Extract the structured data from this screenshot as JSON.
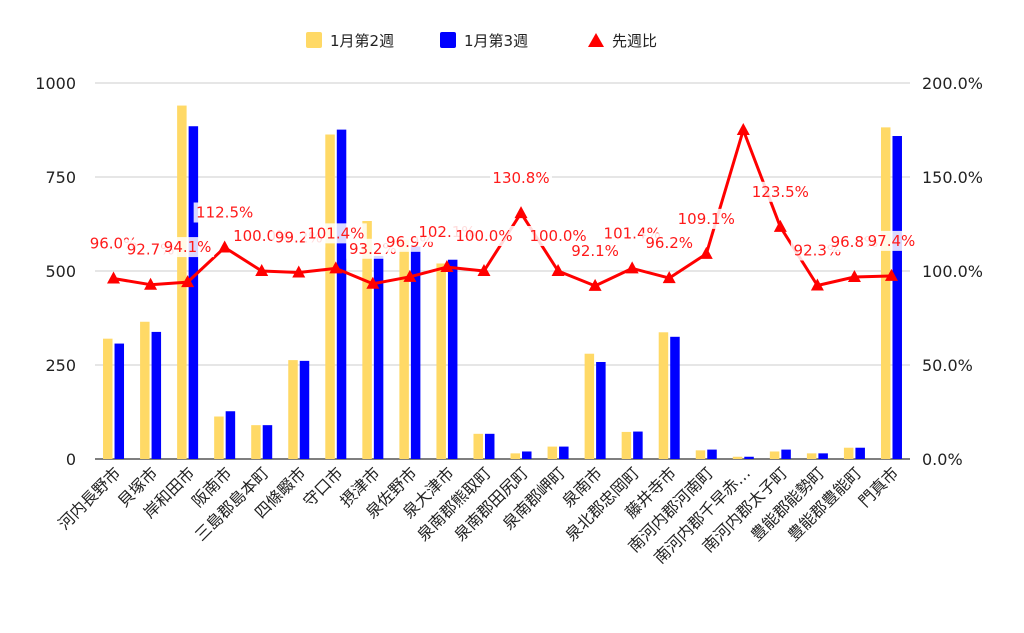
{
  "chart_data": {
    "type": "bar",
    "categories": [
      "河内長野市",
      "貝塚市",
      "岸和田市",
      "阪南市",
      "三島郡島本町",
      "四條畷市",
      "守口市",
      "摂津市",
      "泉佐野市",
      "泉大津市",
      "泉南郡熊取町",
      "泉南郡田尻町",
      "泉南郡岬町",
      "泉南市",
      "泉北郡忠岡町",
      "藤井寺市",
      "南河内郡河南町",
      "南河内郡千早赤…",
      "南河内郡太子町",
      "豊能郡能勢町",
      "豊能郡豊能町",
      "門真市"
    ],
    "series": [
      {
        "name": "1月第2週",
        "axis": "left",
        "type": "bar",
        "color": "#ffd966",
        "values": [
          320,
          365,
          940,
          113,
          90,
          263,
          863,
          633,
          583,
          520,
          67,
          15,
          33,
          280,
          72,
          337,
          23,
          6,
          20,
          15,
          30,
          882
        ]
      },
      {
        "name": "1月第3週",
        "axis": "left",
        "type": "bar",
        "color": "#0000ff",
        "values": [
          307,
          338,
          885,
          127,
          90,
          261,
          876,
          540,
          565,
          530,
          67,
          20,
          33,
          258,
          73,
          325,
          25,
          6,
          25,
          15,
          30,
          859
        ]
      },
      {
        "name": "先週比",
        "axis": "right",
        "type": "line",
        "color": "#ff0000",
        "values": [
          0.96,
          0.927,
          0.941,
          1.125,
          1.0,
          0.992,
          1.014,
          0.932,
          0.969,
          1.021,
          1.0,
          1.308,
          1.0,
          0.921,
          1.014,
          0.962,
          1.091,
          1.75,
          1.235,
          0.923,
          0.968,
          0.974
        ]
      }
    ],
    "data_labels": [
      "96.0%",
      "92.7%",
      "94.1%",
      "112.5%",
      "100.0%",
      "99.2%",
      "101.4%",
      "93.2%",
      "96.9%",
      "102.1%",
      "100.0%",
      "130.8%",
      "100.0%",
      "92.1%",
      "101.4%",
      "96.2%",
      "109.1%",
      "",
      "123.5%",
      "92.3%",
      "96.8%",
      "97.4%"
    ],
    "ylim_left": [
      0,
      1000
    ],
    "yticks_left": [
      "0",
      "250",
      "500",
      "750",
      "1000"
    ],
    "ylim_right": [
      0,
      2.0
    ],
    "yticks_right": [
      "0.0%",
      "50.0%",
      "100.0%",
      "150.0%",
      "200.0%"
    ],
    "grid": true,
    "legend_position": "top"
  },
  "legend": [
    {
      "label": "1月第2週",
      "color": "#ffd966",
      "shape": "square"
    },
    {
      "label": "1月第3週",
      "color": "#0000ff",
      "shape": "square"
    },
    {
      "label": "先週比",
      "color": "#ff0000",
      "shape": "triangle"
    }
  ]
}
